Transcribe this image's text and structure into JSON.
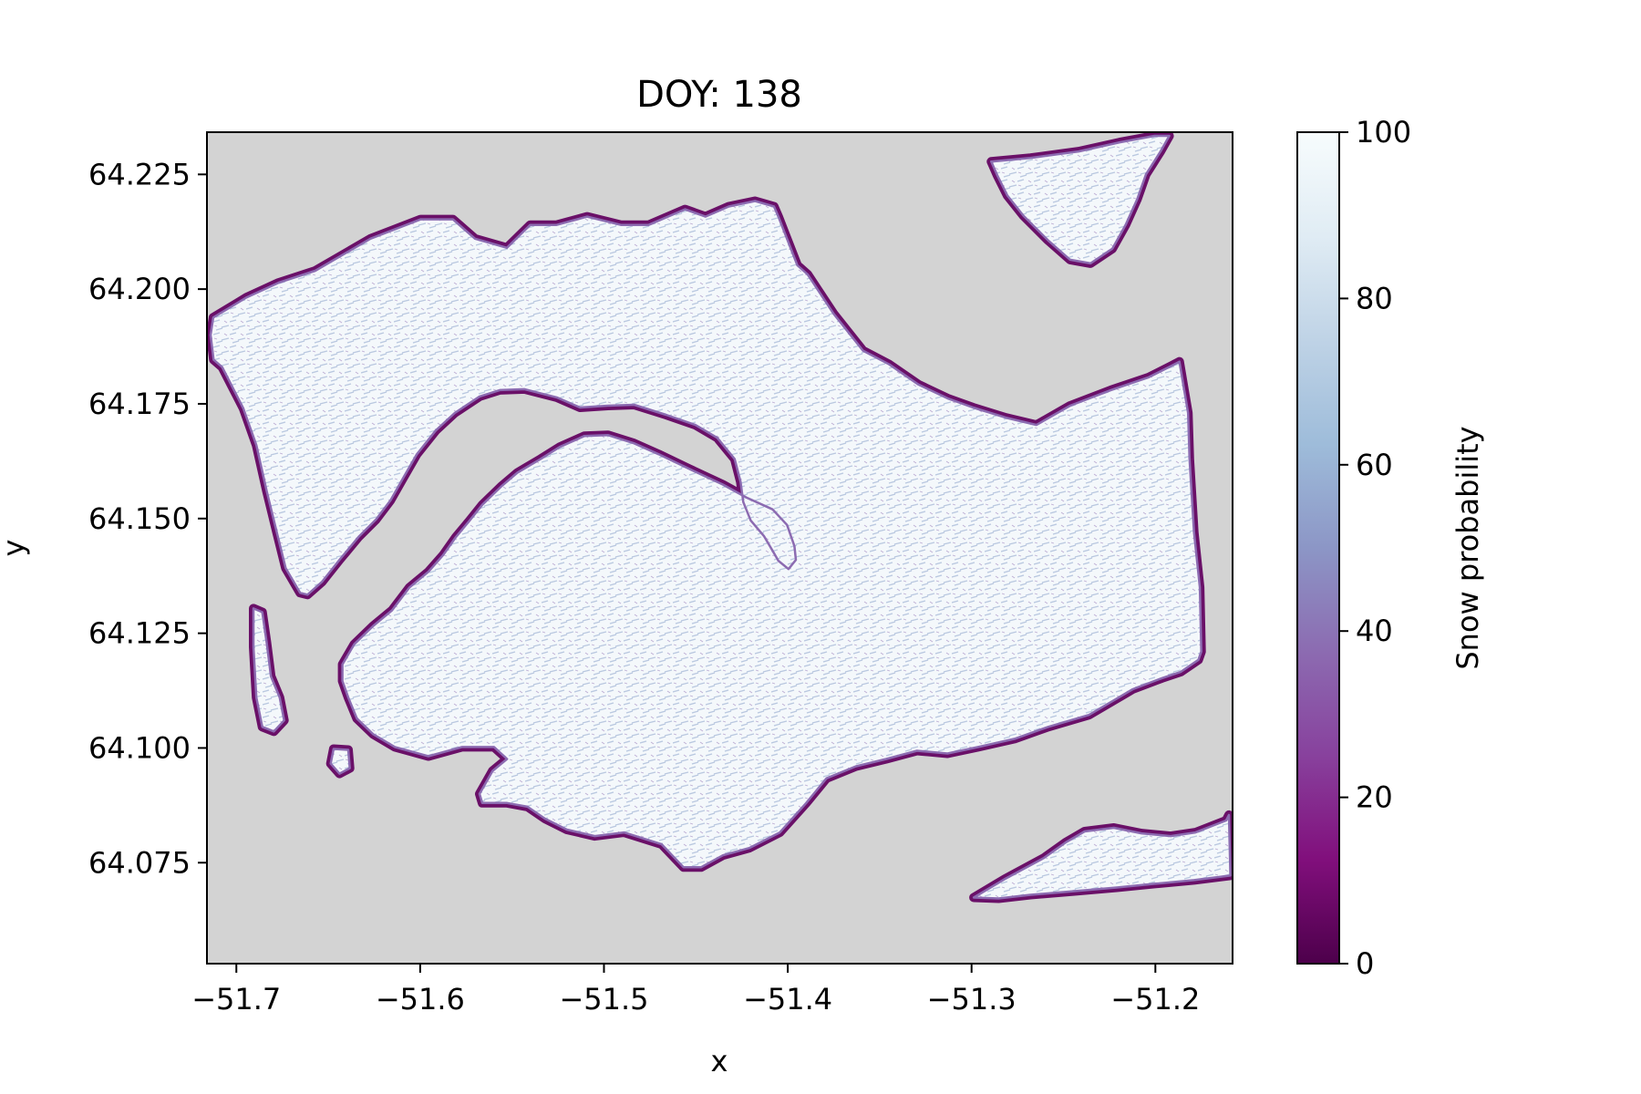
{
  "chart_data": {
    "type": "heatmap",
    "title": "DOY: 138",
    "xlabel": "x",
    "ylabel": "y",
    "xlim": [
      -51.716,
      -51.158
    ],
    "ylim": [
      64.053,
      64.2342
    ],
    "x_ticks": [
      -51.7,
      -51.6,
      -51.5,
      -51.4,
      -51.3,
      -51.2
    ],
    "x_tick_labels": [
      "−51.7",
      "−51.6",
      "−51.5",
      "−51.4",
      "−51.3",
      "−51.2"
    ],
    "y_ticks": [
      64.075,
      64.1,
      64.125,
      64.15,
      64.175,
      64.2,
      64.225
    ],
    "y_tick_labels": [
      "64.075",
      "64.100",
      "64.125",
      "64.150",
      "64.175",
      "64.200",
      "64.225"
    ],
    "colorbar": {
      "label": "Snow probability",
      "range": [
        0,
        100
      ],
      "ticks": [
        0,
        20,
        40,
        60,
        80,
        100
      ],
      "tick_labels": [
        "0",
        "20",
        "40",
        "60",
        "80",
        "100"
      ],
      "colormap": "BuPu_r",
      "stops": [
        "#4d004b",
        "#810f7c",
        "#88419d",
        "#8c6bb1",
        "#8c96c6",
        "#9ebcda",
        "#bfd3e6",
        "#e0ecf4",
        "#f7fcfd"
      ]
    },
    "nodata_color": "#d3d3d3",
    "regions": [
      {
        "name": "main landmass",
        "outline": [
          [
            -51.7126,
            64.1938
          ],
          [
            -51.6944,
            64.1982
          ],
          [
            -51.677,
            64.2014
          ],
          [
            -51.6571,
            64.204
          ],
          [
            -51.627,
            64.211
          ],
          [
            -51.5997,
            64.2152
          ],
          [
            -51.5822,
            64.2152
          ],
          [
            -51.5702,
            64.211
          ],
          [
            -51.5528,
            64.209
          ],
          [
            -51.5401,
            64.214
          ],
          [
            -51.5258,
            64.214
          ],
          [
            -51.5091,
            64.2158
          ],
          [
            -51.4908,
            64.214
          ],
          [
            -51.4757,
            64.214
          ],
          [
            -51.4559,
            64.2174
          ],
          [
            -51.4448,
            64.2158
          ],
          [
            -51.4321,
            64.218
          ],
          [
            -51.4178,
            64.2192
          ],
          [
            -51.4075,
            64.218
          ],
          [
            -51.4051,
            64.2158
          ],
          [
            -51.3948,
            64.2052
          ],
          [
            -51.3892,
            64.2032
          ],
          [
            -51.375,
            64.1946
          ],
          [
            -51.3591,
            64.1866
          ],
          [
            -51.3448,
            64.1836
          ],
          [
            -51.3289,
            64.1792
          ],
          [
            -51.3131,
            64.1762
          ],
          [
            -51.2992,
            64.1742
          ],
          [
            -51.2814,
            64.172
          ],
          [
            -51.2647,
            64.1704
          ],
          [
            -51.2464,
            64.1746
          ],
          [
            -51.2242,
            64.178
          ],
          [
            -51.2036,
            64.1808
          ],
          [
            -51.1917,
            64.1832
          ],
          [
            -51.1869,
            64.1842
          ],
          [
            -51.1822,
            64.173
          ],
          [
            -51.1814,
            64.163
          ],
          [
            -51.179,
            64.147
          ],
          [
            -51.1758,
            64.135
          ],
          [
            -51.175,
            64.121
          ],
          [
            -51.1766,
            64.1192
          ],
          [
            -51.1861,
            64.1166
          ],
          [
            -51.1965,
            64.1152
          ],
          [
            -51.2123,
            64.1128
          ],
          [
            -51.2361,
            64.1072
          ],
          [
            -51.2583,
            64.1046
          ],
          [
            -51.2766,
            64.102
          ],
          [
            -51.2964,
            64.1002
          ],
          [
            -51.3131,
            64.0988
          ],
          [
            -51.3297,
            64.0994
          ],
          [
            -51.3464,
            64.0976
          ],
          [
            -51.363,
            64.096
          ],
          [
            -51.3789,
            64.0934
          ],
          [
            -51.39,
            64.088
          ],
          [
            -51.4043,
            64.0816
          ],
          [
            -51.421,
            64.0782
          ],
          [
            -51.4353,
            64.0766
          ],
          [
            -51.4472,
            64.074
          ],
          [
            -51.4567,
            64.074
          ],
          [
            -51.4686,
            64.079
          ],
          [
            -51.4891,
            64.0816
          ],
          [
            -51.505,
            64.0808
          ],
          [
            -51.5202,
            64.0822
          ],
          [
            -51.5321,
            64.0846
          ],
          [
            -51.5416,
            64.0872
          ],
          [
            -51.5527,
            64.088
          ],
          [
            -51.5662,
            64.088
          ],
          [
            -51.5677,
            64.09
          ],
          [
            -51.5606,
            64.095
          ],
          [
            -51.5527,
            64.0976
          ],
          [
            -51.5598,
            64.1002
          ],
          [
            -51.5773,
            64.1002
          ],
          [
            -51.5955,
            64.0982
          ],
          [
            -51.6137,
            64.1002
          ],
          [
            -51.6256,
            64.103
          ],
          [
            -51.6344,
            64.1064
          ],
          [
            -51.6391,
            64.111
          ],
          [
            -51.6423,
            64.1146
          ],
          [
            -51.6423,
            64.1182
          ],
          [
            -51.6359,
            64.1226
          ],
          [
            -51.6256,
            64.1266
          ],
          [
            -51.6153,
            64.13
          ],
          [
            -51.6058,
            64.135
          ],
          [
            -51.5955,
            64.1384
          ],
          [
            -51.5876,
            64.142
          ],
          [
            -51.5805,
            64.146
          ],
          [
            -51.5734,
            64.1494
          ],
          [
            -51.5662,
            64.153
          ],
          [
            -51.5559,
            64.157
          ],
          [
            -51.5471,
            64.16
          ],
          [
            -51.5344,
            64.163
          ],
          [
            -51.5241,
            64.1656
          ],
          [
            -51.5106,
            64.168
          ],
          [
            -51.4979,
            64.1682
          ],
          [
            -51.4837,
            64.1664
          ],
          [
            -51.4702,
            64.164
          ],
          [
            -51.4535,
            64.1608
          ],
          [
            -51.4353,
            64.1574
          ],
          [
            -51.4226,
            64.1546
          ],
          [
            -51.4083,
            64.152
          ],
          [
            -51.4004,
            64.1486
          ],
          [
            -51.3964,
            64.144
          ],
          [
            -51.3956,
            64.141
          ],
          [
            -51.3996,
            64.139
          ],
          [
            -51.4051,
            64.1408
          ],
          [
            -51.4083,
            64.143
          ],
          [
            -51.413,
            64.1462
          ],
          [
            -51.4202,
            64.1496
          ],
          [
            -51.4242,
            64.1536
          ],
          [
            -51.4257,
            64.158
          ],
          [
            -51.4289,
            64.163
          ],
          [
            -51.4384,
            64.1676
          ],
          [
            -51.4503,
            64.1704
          ],
          [
            -51.4662,
            64.1726
          ],
          [
            -51.4836,
            64.1748
          ],
          [
            -51.4979,
            64.1746
          ],
          [
            -51.513,
            64.1742
          ],
          [
            -51.5257,
            64.1764
          ],
          [
            -51.5432,
            64.1782
          ],
          [
            -51.5567,
            64.178
          ],
          [
            -51.5677,
            64.1766
          ],
          [
            -51.5812,
            64.173
          ],
          [
            -51.5915,
            64.1692
          ],
          [
            -51.6018,
            64.164
          ],
          [
            -51.609,
            64.159
          ],
          [
            -51.6161,
            64.154
          ],
          [
            -51.624,
            64.1498
          ],
          [
            -51.6335,
            64.146
          ],
          [
            -51.6439,
            64.141
          ],
          [
            -51.6534,
            64.1362
          ],
          [
            -51.6613,
            64.1334
          ],
          [
            -51.6653,
            64.1338
          ],
          [
            -51.6732,
            64.1392
          ],
          [
            -51.678,
            64.147
          ],
          [
            -51.6835,
            64.156
          ],
          [
            -51.6891,
            64.166
          ],
          [
            -51.6962,
            64.174
          ],
          [
            -51.7026,
            64.179
          ],
          [
            -51.7077,
            64.183
          ],
          [
            -51.7124,
            64.1846
          ],
          [
            -51.714,
            64.19
          ]
        ]
      },
      {
        "name": "top-right landmass",
        "outline": [
          [
            -51.2893,
            64.2278
          ],
          [
            -51.2679,
            64.2286
          ],
          [
            -51.2417,
            64.23
          ],
          [
            -51.2194,
            64.232
          ],
          [
            -51.2004,
            64.2334
          ],
          [
            -51.1924,
            64.2334
          ],
          [
            -51.1972,
            64.23
          ],
          [
            -51.2051,
            64.225
          ],
          [
            -51.2099,
            64.2196
          ],
          [
            -51.2162,
            64.214
          ],
          [
            -51.2234,
            64.2088
          ],
          [
            -51.2353,
            64.2056
          ],
          [
            -51.2464,
            64.2064
          ],
          [
            -51.2583,
            64.2106
          ],
          [
            -51.2718,
            64.216
          ],
          [
            -51.2805,
            64.2204
          ],
          [
            -51.286,
            64.2248
          ]
        ]
      },
      {
        "name": "bottom-right landmass",
        "outline": [
          [
            -51.2988,
            64.0674
          ],
          [
            -51.2821,
            64.0714
          ],
          [
            -51.2607,
            64.076
          ],
          [
            -51.2488,
            64.0794
          ],
          [
            -51.2385,
            64.0818
          ],
          [
            -51.2226,
            64.0826
          ],
          [
            -51.2075,
            64.0814
          ],
          [
            -51.1917,
            64.0808
          ],
          [
            -51.1782,
            64.0816
          ],
          [
            -51.1615,
            64.0842
          ],
          [
            -51.16,
            64.0854
          ],
          [
            -51.1592,
            64.0722
          ],
          [
            -51.179,
            64.0712
          ],
          [
            -51.2004,
            64.0704
          ],
          [
            -51.221,
            64.0696
          ],
          [
            -51.244,
            64.0688
          ],
          [
            -51.2679,
            64.068
          ],
          [
            -51.2853,
            64.0672
          ]
        ]
      },
      {
        "name": "left islet",
        "outline": [
          [
            -51.6907,
            64.1304
          ],
          [
            -51.6859,
            64.1296
          ],
          [
            -51.6835,
            64.123
          ],
          [
            -51.6812,
            64.1156
          ],
          [
            -51.6764,
            64.111
          ],
          [
            -51.674,
            64.106
          ],
          [
            -51.6796,
            64.1036
          ],
          [
            -51.6859,
            64.1046
          ],
          [
            -51.6891,
            64.111
          ],
          [
            -51.6907,
            64.122
          ]
        ]
      },
      {
        "name": "small islet",
        "outline": [
          [
            -51.6471,
            64.0998
          ],
          [
            -51.6391,
            64.0996
          ],
          [
            -51.6383,
            64.0956
          ],
          [
            -51.6439,
            64.0944
          ],
          [
            -51.6487,
            64.0966
          ]
        ]
      }
    ]
  }
}
